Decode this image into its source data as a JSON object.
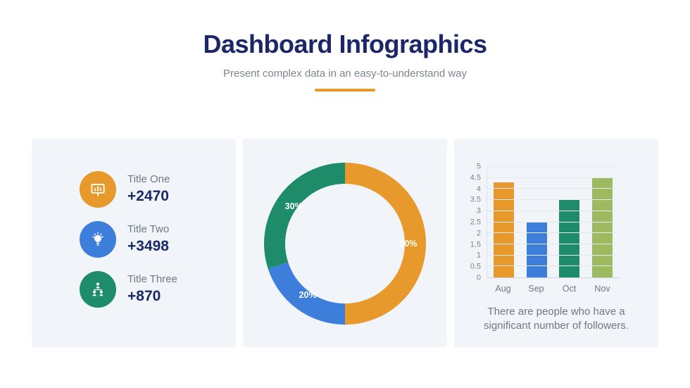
{
  "header": {
    "title": "Dashboard Infographics",
    "subtitle": "Present complex data in an easy-to-understand way"
  },
  "stats": {
    "items": [
      {
        "label": "Title One",
        "value": "+2470",
        "icon": "presentation-chart-icon",
        "color": "#E8992B"
      },
      {
        "label": "Title Two",
        "value": "+3498",
        "icon": "lightbulb-icon",
        "color": "#3E7EDB"
      },
      {
        "label": "Title Three",
        "value": "+870",
        "icon": "org-chart-icon",
        "color": "#1E8C69"
      }
    ]
  },
  "chart_data": [
    {
      "type": "pie",
      "subtype": "donut",
      "slices": [
        {
          "label": "50%",
          "value": 50,
          "color": "#E8992B"
        },
        {
          "label": "20%",
          "value": 20,
          "color": "#3E7EDB"
        },
        {
          "label": "30%",
          "value": 30,
          "color": "#1E8C69"
        }
      ],
      "start_angle_deg": 0,
      "direction": "clockwise",
      "label_color": "#FFFFFF",
      "legend": "none"
    },
    {
      "type": "bar",
      "categories": [
        "Aug",
        "Sep",
        "Oct",
        "Nov"
      ],
      "values": [
        4.3,
        2.5,
        3.5,
        4.5
      ],
      "colors": [
        "#E8992B",
        "#3E7EDB",
        "#1E8C69",
        "#9CBA5F"
      ],
      "ylim": [
        0,
        5
      ],
      "ytick_step": 0.5,
      "grid": true,
      "legend": "none",
      "caption": "There are people who have a significant number of followers."
    }
  ],
  "theme": {
    "title_navy": "#1B2768",
    "value_navy": "#1A2A66",
    "muted_text": "#6E7882",
    "panel_bg": "#F1F5F9",
    "accent_orange": "#E8992B",
    "accent_blue": "#3E7EDB",
    "accent_green": "#1E8C69",
    "accent_olive": "#9CBA5F"
  }
}
